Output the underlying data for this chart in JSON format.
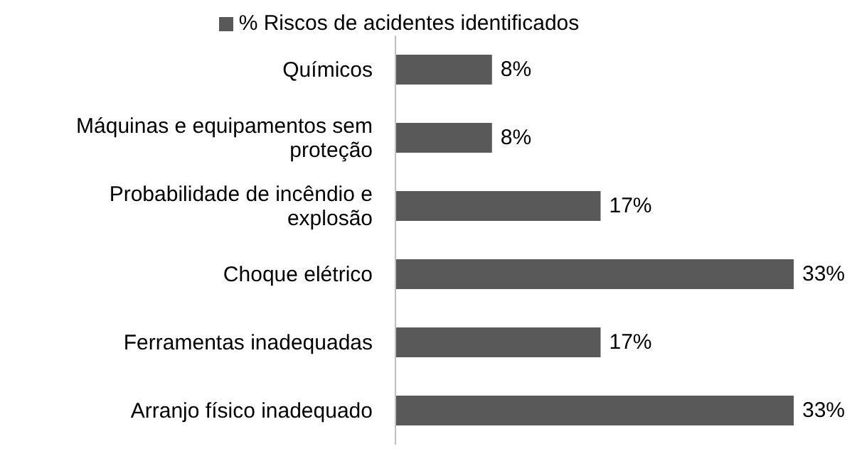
{
  "chart_data": {
    "type": "bar",
    "orientation": "horizontal",
    "categories": [
      "Químicos",
      "Máquinas e equipamentos sem proteção",
      "Probabilidade de incêndio e explosão",
      "Choque elétrico",
      "Ferramentas inadequadas",
      "Arranjo físico inadequado"
    ],
    "series": [
      {
        "name": "% Riscos de acidentes identificados",
        "color": "#595959",
        "values": [
          8,
          8,
          17,
          33,
          17,
          33
        ],
        "value_labels": [
          "8%",
          "8%",
          "17%",
          "33%",
          "17%",
          "33%"
        ]
      }
    ],
    "legend": "top",
    "grid": false
  }
}
